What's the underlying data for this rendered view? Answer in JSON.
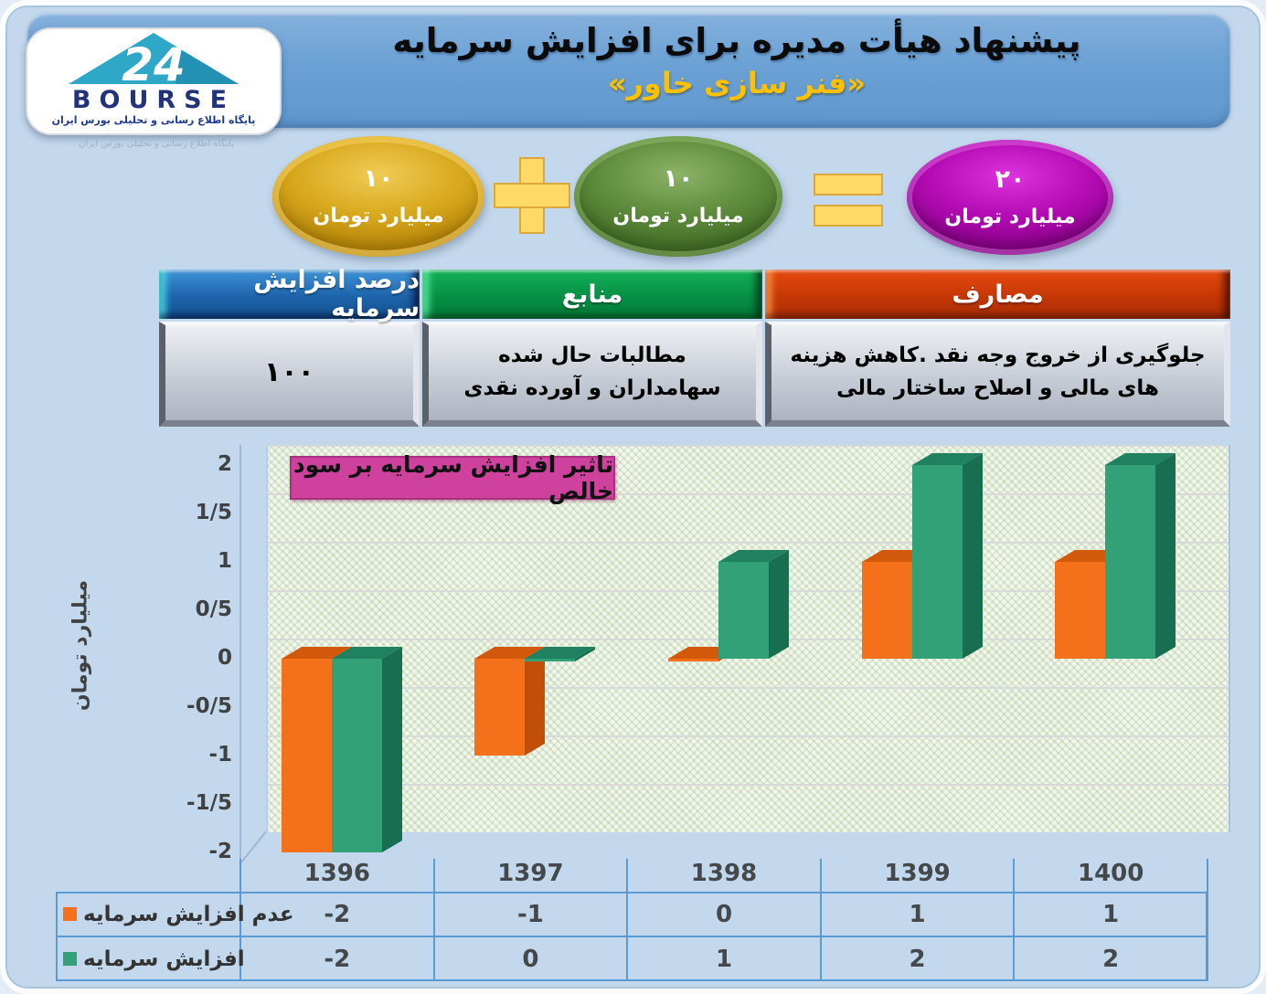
{
  "logo": {
    "brand": "BOURSE",
    "number": "24",
    "tagline": "پایگاه اطلاع رسانی و تحلیلی بورس ایران"
  },
  "header": {
    "title": "پیشنهاد هیأت مدیره برای افزایش سرمایه",
    "subtitle": "«فنر سازی خاور»"
  },
  "equation": {
    "left": {
      "value": "۱۰",
      "unit": "میلیارد تومان",
      "color": "#C9990F"
    },
    "plus": "+",
    "right": {
      "value": "۱۰",
      "unit": "میلیارد تومان",
      "color": "#55803A"
    },
    "equals": "=",
    "result": {
      "value": "۲۰",
      "unit": "میلیارد تومان",
      "color": "#B50CB5"
    }
  },
  "info_table": {
    "columns": [
      {
        "header": "درصد افزایش سرمایه",
        "header_color": "#1D64AB",
        "value": "۱۰۰"
      },
      {
        "header": "منابع",
        "header_color": "#079045",
        "value": "مطالبات حال شده سهامداران و آورده نقدی"
      },
      {
        "header": "مصارف",
        "header_color": "#C53706",
        "value": "جلوگیری از خروج وجه نقد .کاهش هزینه های مالی و اصلاح ساختار مالی"
      }
    ]
  },
  "chart_data": {
    "type": "bar",
    "title": "تاثیر افزایش سرمایه بر سود خالص",
    "ylabel": "میلیارد تومان",
    "categories": [
      "1396",
      "1397",
      "1398",
      "1399",
      "1400"
    ],
    "series": [
      {
        "name": "عدم افزایش سرمایه",
        "color": "#F4701B",
        "top_color": "#D2590C",
        "side_color": "#C24F08",
        "values": [
          -2,
          -1,
          0,
          1,
          1
        ]
      },
      {
        "name": "افزایش سرمایه",
        "color": "#33A177",
        "top_color": "#1F8160",
        "side_color": "#176E51",
        "values": [
          -2,
          0,
          1,
          2,
          2
        ]
      }
    ],
    "ylim": [
      -2,
      2
    ],
    "ytick_labels": [
      "2",
      "1/5",
      "1",
      "0/5",
      "0",
      "-0/5",
      "-1",
      "-1/5",
      "-2"
    ],
    "grid": true,
    "legend_position": "bottom-table"
  }
}
